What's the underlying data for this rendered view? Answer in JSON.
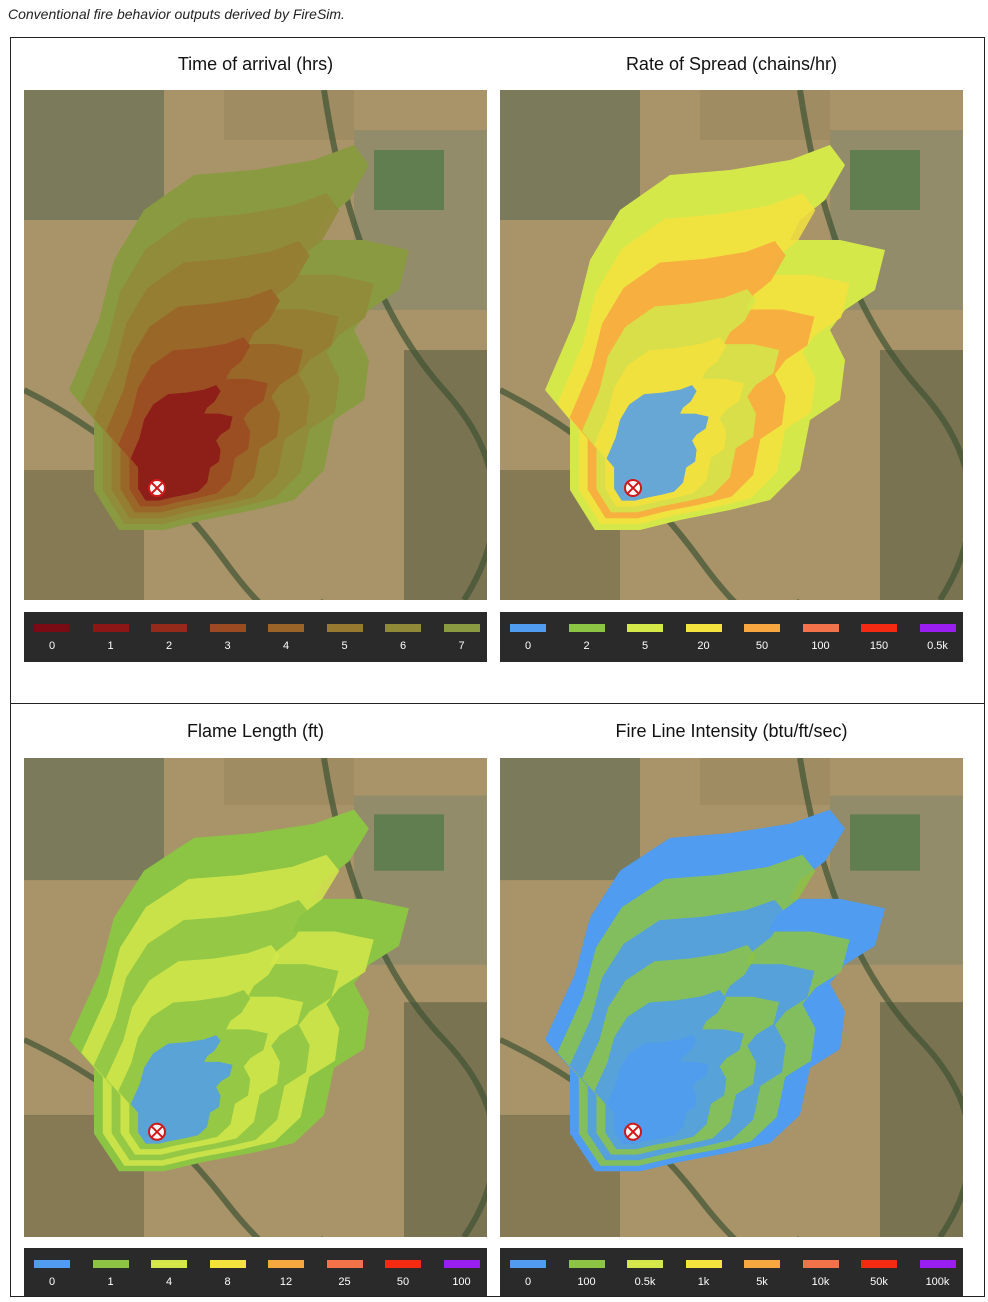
{
  "caption": "Conventional fire behavior outputs derived by FireSim.",
  "panels": [
    {
      "title": "Time of arrival (hrs)",
      "legend": [
        {
          "label": "0",
          "color": "#7a0a14"
        },
        {
          "label": "1",
          "color": "#8c1616"
        },
        {
          "label": "2",
          "color": "#962a1a"
        },
        {
          "label": "3",
          "color": "#9c4a22"
        },
        {
          "label": "4",
          "color": "#9a6428"
        },
        {
          "label": "5",
          "color": "#977a30"
        },
        {
          "label": "6",
          "color": "#908a38"
        },
        {
          "label": "7",
          "color": "#8a9a40"
        }
      ]
    },
    {
      "title": "Rate of Spread (chains/hr)",
      "legend": [
        {
          "label": "0",
          "color": "#4f9cf0"
        },
        {
          "label": "2",
          "color": "#8cc444"
        },
        {
          "label": "5",
          "color": "#d4e84a"
        },
        {
          "label": "20",
          "color": "#f4e23e"
        },
        {
          "label": "50",
          "color": "#f8a640"
        },
        {
          "label": "100",
          "color": "#f4724a"
        },
        {
          "label": "150",
          "color": "#f42a12"
        },
        {
          "label": "0.5k",
          "color": "#9a1ef0"
        }
      ]
    },
    {
      "title": "Flame Length (ft)",
      "legend": [
        {
          "label": "0",
          "color": "#4f9cf0"
        },
        {
          "label": "1",
          "color": "#8cc444"
        },
        {
          "label": "4",
          "color": "#d4e84a"
        },
        {
          "label": "8",
          "color": "#f4e23e"
        },
        {
          "label": "12",
          "color": "#f8a640"
        },
        {
          "label": "25",
          "color": "#f4724a"
        },
        {
          "label": "50",
          "color": "#f42a12"
        },
        {
          "label": "100",
          "color": "#9a1ef0"
        }
      ]
    },
    {
      "title": "Fire Line Intensity (btu/ft/sec)",
      "legend": [
        {
          "label": "0",
          "color": "#4f9cf0"
        },
        {
          "label": "100",
          "color": "#8cc444"
        },
        {
          "label": "0.5k",
          "color": "#d4e84a"
        },
        {
          "label": "1k",
          "color": "#f4e23e"
        },
        {
          "label": "5k",
          "color": "#f8a640"
        },
        {
          "label": "10k",
          "color": "#f4724a"
        },
        {
          "label": "50k",
          "color": "#f42a12"
        },
        {
          "label": "100k",
          "color": "#9a1ef0"
        }
      ]
    }
  ]
}
